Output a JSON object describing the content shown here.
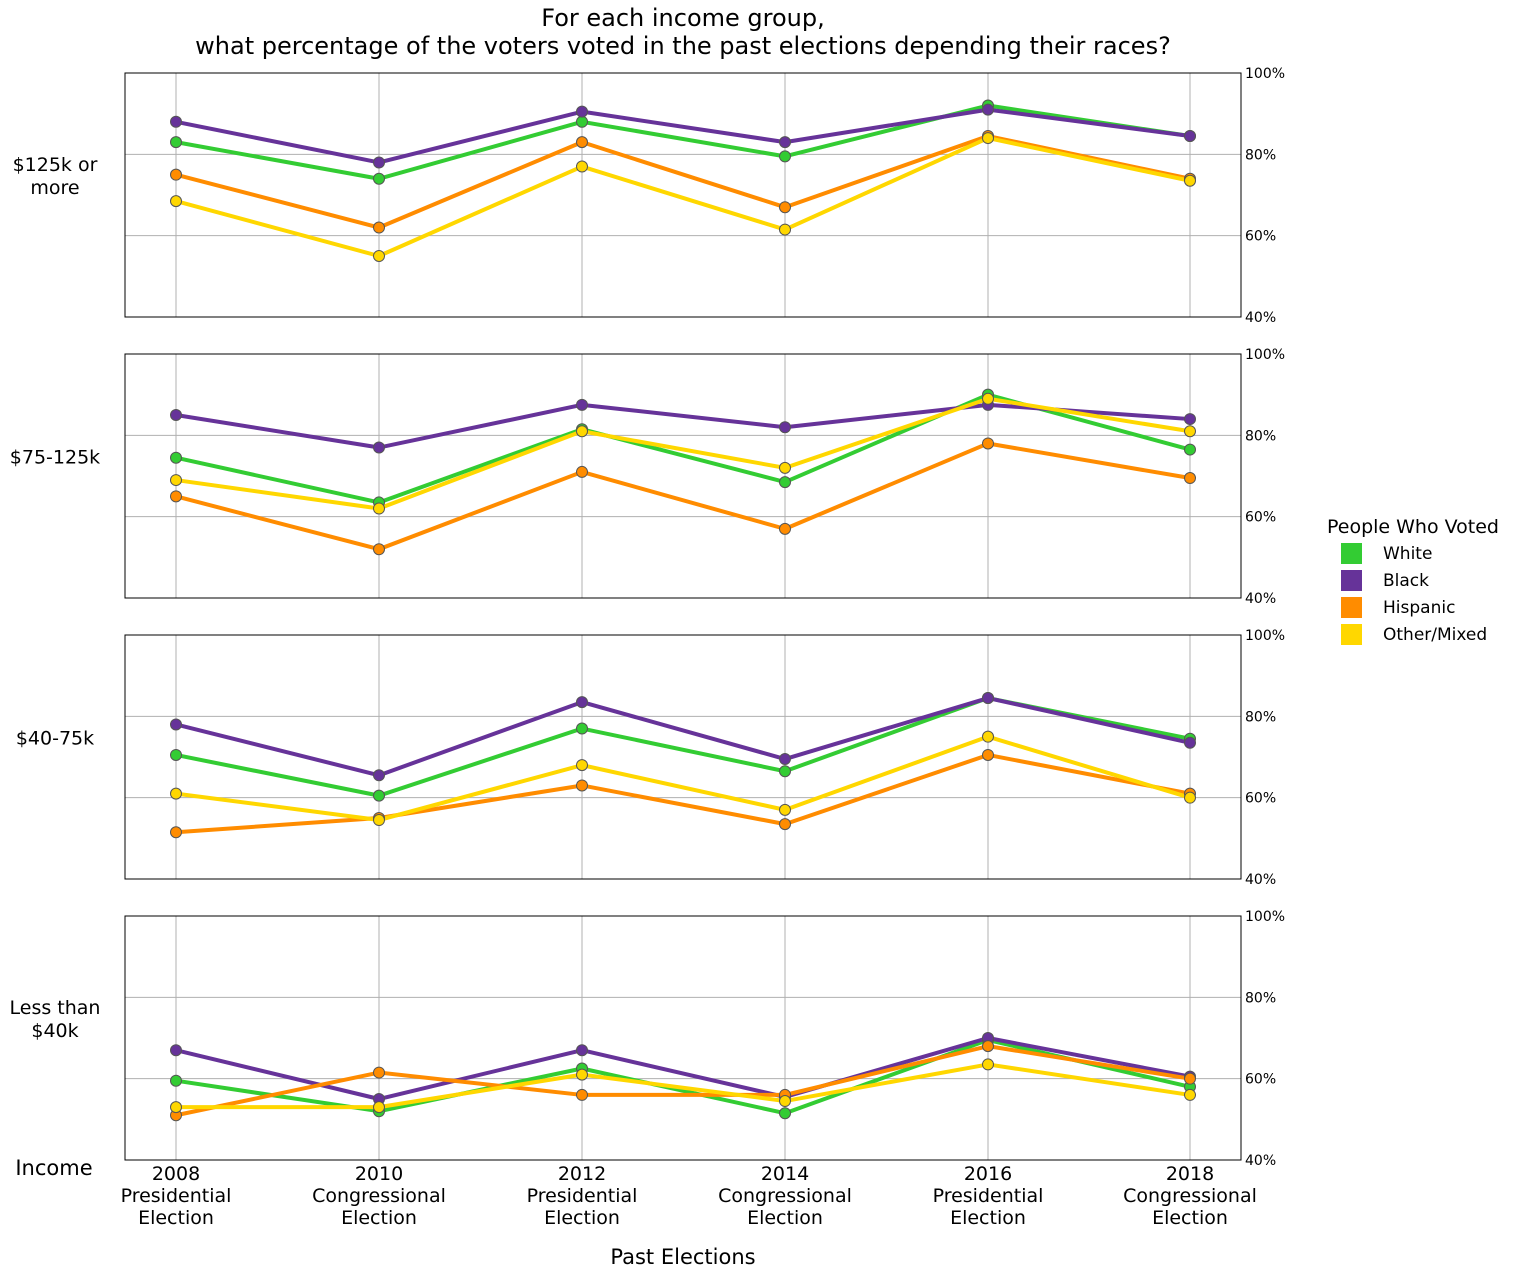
{
  "chart_data": {
    "type": "line",
    "title": [
      "For each income group,",
      "what percentage of the voters voted in the past elections depending their races?"
    ],
    "xlabel": "Past Elections",
    "row_axis_label": "Income",
    "categories": [
      [
        "2008",
        "Presidential",
        "Election"
      ],
      [
        "2010",
        "Congressional",
        "Election"
      ],
      [
        "2012",
        "Presidential",
        "Election"
      ],
      [
        "2014",
        "Congressional",
        "Election"
      ],
      [
        "2016",
        "Presidential",
        "Election"
      ],
      [
        "2018",
        "Congressional",
        "Election"
      ]
    ],
    "ylim": [
      40,
      100
    ],
    "yticks": [
      40,
      60,
      80,
      100
    ],
    "ytick_labels": [
      "40%",
      "60%",
      "80%",
      "100%"
    ],
    "grid": true,
    "legend": {
      "title": "People Who Voted",
      "placement": "right",
      "entries": [
        "White",
        "Black",
        "Hispanic",
        "Other/Mixed"
      ]
    },
    "colors": {
      "White": "#33cc33",
      "Black": "#663399",
      "Hispanic": "#ff8c00",
      "Other/Mixed": "#ffd700"
    },
    "panels": [
      {
        "label": [
          "$125k or",
          "more"
        ],
        "series": [
          {
            "name": "White",
            "values": [
              83,
              74,
              88,
              79.5,
              92,
              84.5
            ]
          },
          {
            "name": "Black",
            "values": [
              88,
              78,
              90.5,
              83,
              91,
              84.5
            ]
          },
          {
            "name": "Hispanic",
            "values": [
              75,
              62,
              83,
              67,
              84.5,
              74
            ]
          },
          {
            "name": "Other/Mixed",
            "values": [
              68.5,
              55,
              77,
              61.5,
              84,
              73.5
            ]
          }
        ]
      },
      {
        "label": [
          "$75-125k"
        ],
        "series": [
          {
            "name": "White",
            "values": [
              74.5,
              63.5,
              81.5,
              68.5,
              90,
              76.5
            ]
          },
          {
            "name": "Black",
            "values": [
              85,
              77,
              87.5,
              82,
              87.5,
              84
            ]
          },
          {
            "name": "Hispanic",
            "values": [
              65,
              52,
              71,
              57,
              78,
              69.5
            ]
          },
          {
            "name": "Other/Mixed",
            "values": [
              69,
              62,
              81,
              72,
              89,
              81
            ]
          }
        ]
      },
      {
        "label": [
          "$40-75k"
        ],
        "series": [
          {
            "name": "White",
            "values": [
              70.5,
              60.5,
              77,
              66.5,
              84.5,
              74.5
            ]
          },
          {
            "name": "Black",
            "values": [
              78,
              65.5,
              83.5,
              69.5,
              84.5,
              73.5
            ]
          },
          {
            "name": "Hispanic",
            "values": [
              51.5,
              55,
              63,
              53.5,
              70.5,
              61
            ]
          },
          {
            "name": "Other/Mixed",
            "values": [
              61,
              54.5,
              68,
              57,
              75,
              60
            ]
          }
        ]
      },
      {
        "label": [
          "Less than",
          "$40k"
        ],
        "series": [
          {
            "name": "White",
            "values": [
              59.5,
              52,
              62.5,
              51.5,
              69.5,
              58
            ]
          },
          {
            "name": "Black",
            "values": [
              67,
              55,
              67,
              55.5,
              70,
              60.5
            ]
          },
          {
            "name": "Hispanic",
            "values": [
              51,
              61.5,
              56,
              56,
              68,
              60
            ]
          },
          {
            "name": "Other/Mixed",
            "values": [
              53,
              53,
              61,
              54.5,
              63.5,
              56
            ]
          }
        ]
      }
    ]
  }
}
